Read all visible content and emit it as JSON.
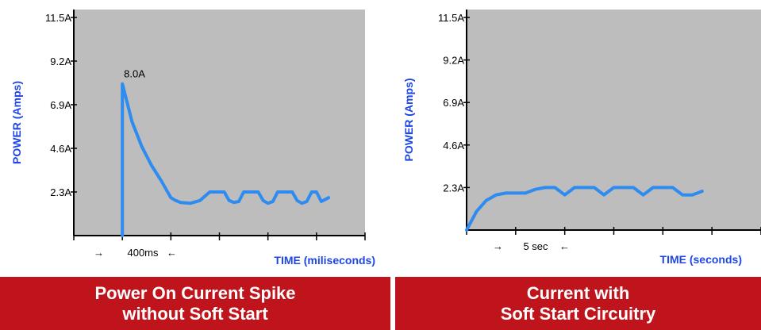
{
  "chart_data": [
    {
      "type": "line",
      "ylabel": "POWER (Amps)",
      "xlabel": "TIME (miliseconds)",
      "yticks": [
        "2.3A",
        "4.6A",
        "6.9A",
        "9.2A",
        "11.5A"
      ],
      "ylim": [
        0,
        11.5
      ],
      "xlim": [
        0,
        1200
      ],
      "xticks": [
        0,
        200,
        400,
        600,
        800,
        1000,
        1200
      ],
      "grid": false,
      "background": "#bdbdbd",
      "line_color": "#2e8bf0",
      "series": [
        {
          "x": [
            200,
            200,
            240,
            280,
            320,
            360,
            400,
            420,
            440,
            480,
            520,
            560,
            580,
            600,
            620,
            640,
            660,
            680,
            700,
            720,
            740,
            760,
            780,
            800,
            820,
            840,
            860,
            880,
            900,
            920,
            940,
            960,
            980,
            1000,
            1020,
            1050
          ],
          "y": [
            0,
            8.0,
            6.0,
            4.7,
            3.7,
            2.9,
            2.0,
            1.85,
            1.75,
            1.7,
            1.85,
            2.3,
            2.3,
            2.3,
            2.3,
            1.85,
            1.75,
            1.8,
            2.3,
            2.3,
            2.3,
            2.3,
            1.85,
            1.7,
            1.8,
            2.3,
            2.3,
            2.3,
            2.3,
            1.85,
            1.7,
            1.8,
            2.3,
            2.3,
            1.8,
            2.0
          ]
        }
      ],
      "annotations": {
        "peak_label": "8.0A",
        "interval_label": "400ms",
        "left_arrow": "→",
        "right_arrow": "←"
      },
      "caption": [
        "Power On Current Spike",
        "without Soft Start"
      ]
    },
    {
      "type": "line",
      "ylabel": "POWER (Amps)",
      "xlabel": "TIME (seconds)",
      "yticks": [
        "2.3A",
        "4.6A",
        "6.9A",
        "9.2A",
        "11.5A"
      ],
      "ylim": [
        0,
        11.5
      ],
      "xlim": [
        0,
        30
      ],
      "xticks": [
        0,
        5,
        10,
        15,
        20,
        25,
        30
      ],
      "grid": false,
      "background": "#bdbdbd",
      "line_color": "#2e8bf0",
      "series": [
        {
          "x": [
            0,
            1,
            2,
            3,
            4,
            5,
            6,
            7,
            8,
            9,
            10,
            11,
            12,
            13,
            14,
            15,
            16,
            17,
            18,
            19,
            20,
            21,
            22,
            23,
            24
          ],
          "y": [
            0,
            1.0,
            1.6,
            1.9,
            2.0,
            2.0,
            2.0,
            2.2,
            2.3,
            2.3,
            1.9,
            2.3,
            2.3,
            2.3,
            1.9,
            2.3,
            2.3,
            2.3,
            1.9,
            2.3,
            2.3,
            2.3,
            1.9,
            1.9,
            2.1
          ]
        }
      ],
      "annotations": {
        "interval_label": "5 sec",
        "left_arrow": "→",
        "right_arrow": "←"
      },
      "caption": [
        "Current with",
        "Soft Start Circuitry"
      ]
    }
  ]
}
